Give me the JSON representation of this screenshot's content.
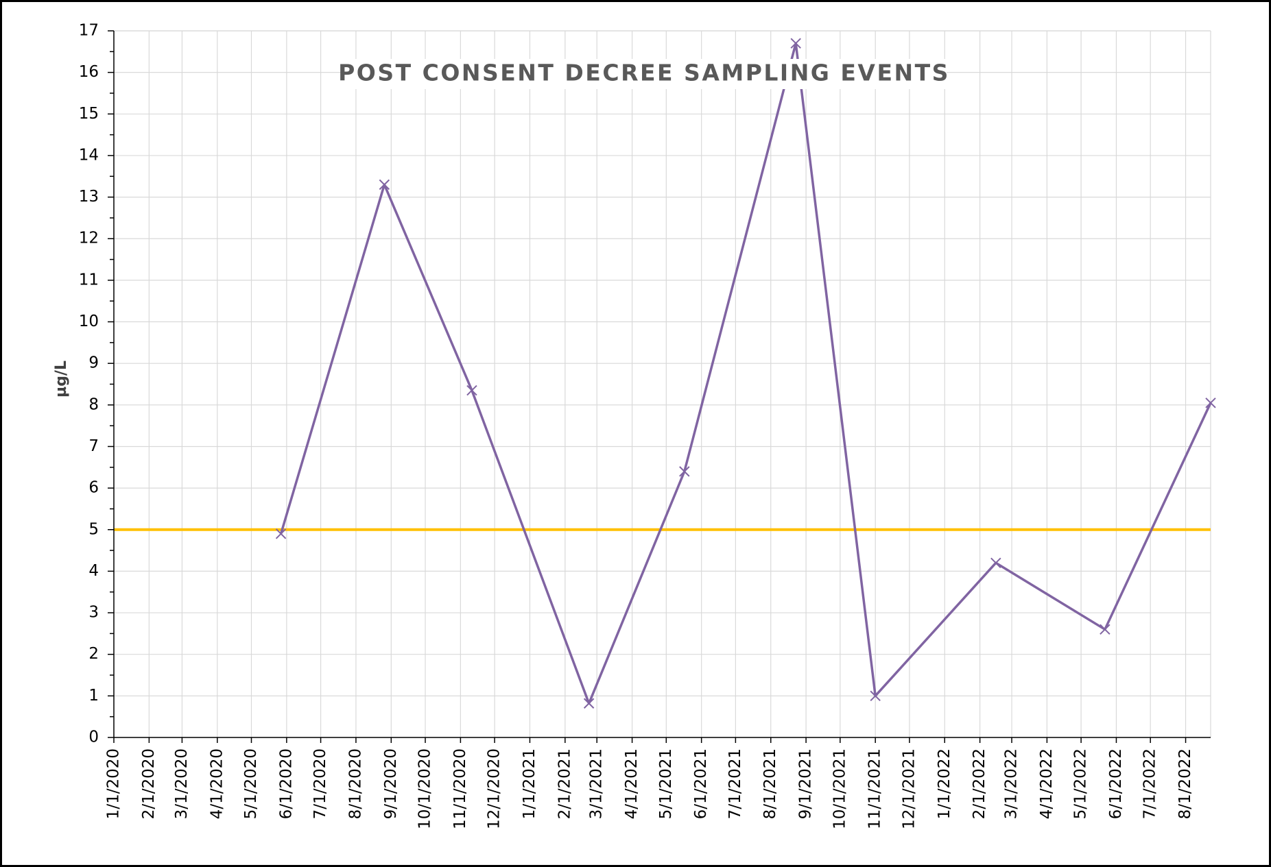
{
  "chart_data": {
    "type": "line",
    "title": "POST CONSENT DECREE SAMPLING EVENTS",
    "y_label": "µg/L",
    "x": [
      "5/27/2020",
      "8/26/2020",
      "11/11/2020",
      "2/22/2021",
      "5/17/2021",
      "8/23/2021",
      "11/1/2021",
      "2/15/2022",
      "5/22/2022",
      "8/23/2022"
    ],
    "series": [
      {
        "color": "#8064a2",
        "marker": "x",
        "values": [
          4.9,
          13.3,
          8.35,
          0.82,
          6.4,
          16.7,
          1.0,
          4.2,
          2.6,
          8.05
        ]
      }
    ],
    "threshold": {
      "value": 5,
      "color": "#ffc000"
    },
    "xlim": [
      "1/1/2020",
      "8/23/2022"
    ],
    "xticks": [
      "1/1/2020",
      "2/1/2020",
      "3/1/2020",
      "4/1/2020",
      "5/1/2020",
      "6/1/2020",
      "7/1/2020",
      "8/1/2020",
      "9/1/2020",
      "10/1/2020",
      "11/1/2020",
      "12/1/2020",
      "1/1/2021",
      "2/1/2021",
      "3/1/2021",
      "4/1/2021",
      "5/1/2021",
      "6/1/2021",
      "7/1/2021",
      "8/1/2021",
      "9/1/2021",
      "10/1/2021",
      "11/1/2021",
      "12/1/2021",
      "1/1/2022",
      "2/1/2022",
      "3/1/2022",
      "4/1/2022",
      "5/1/2022",
      "6/1/2022",
      "7/1/2022",
      "8/1/2022"
    ],
    "ylim": [
      0,
      17
    ],
    "yticks": [
      0,
      1,
      2,
      3,
      4,
      5,
      6,
      7,
      8,
      9,
      10,
      11,
      12,
      13,
      14,
      15,
      16,
      17
    ],
    "grid": true
  }
}
